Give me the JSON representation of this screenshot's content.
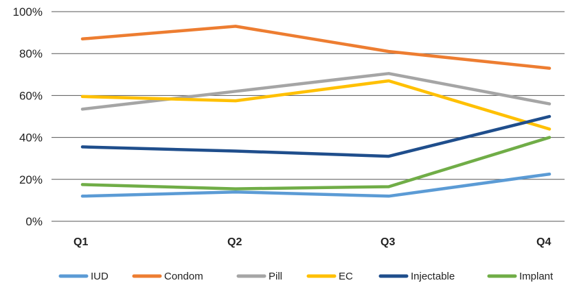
{
  "chart_data": {
    "type": "line",
    "categories": [
      "Q1",
      "Q2",
      "Q3",
      "Q4"
    ],
    "ylim": [
      0,
      100
    ],
    "yticks": [
      "0%",
      "20%",
      "40%",
      "60%",
      "80%",
      "100%"
    ],
    "ytick_values": [
      0,
      20,
      40,
      60,
      80,
      100
    ],
    "grid": true,
    "legend_position": "bottom",
    "series": [
      {
        "name": "IUD",
        "color": "#5b9bd5",
        "values": [
          12,
          14,
          12,
          22.5
        ]
      },
      {
        "name": "Condom",
        "color": "#ed7d31",
        "values": [
          87,
          93,
          81,
          73
        ]
      },
      {
        "name": "Pill",
        "color": "#a5a5a5",
        "values": [
          53.5,
          62,
          70.5,
          56
        ]
      },
      {
        "name": "EC",
        "color": "#ffc000",
        "values": [
          59.5,
          57.5,
          67,
          44
        ]
      },
      {
        "name": "Injectable",
        "color": "#1f4e8c",
        "values": [
          35.5,
          33.5,
          31,
          50
        ]
      },
      {
        "name": "Implant",
        "color": "#70ad47",
        "values": [
          17.5,
          15.5,
          16.5,
          40
        ]
      }
    ]
  }
}
